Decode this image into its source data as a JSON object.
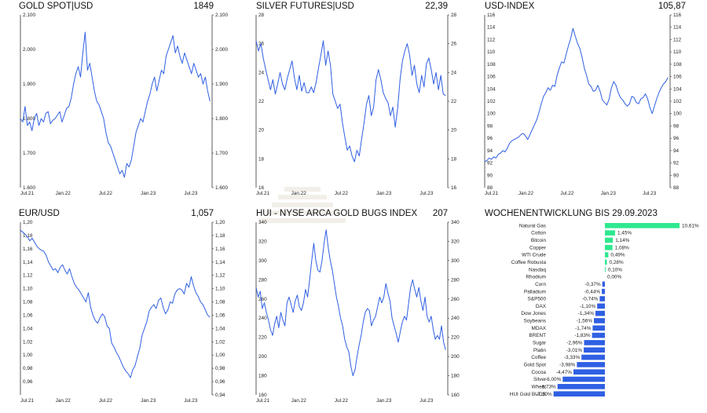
{
  "chart_data": [
    {
      "type": "line",
      "title": "GOLD SPOT|USD",
      "last_value": "1849",
      "ylim": [
        1600,
        2100
      ],
      "y_ticks": [
        "1.600",
        "1.700",
        "1.800",
        "1.900",
        "2.000",
        "2.100"
      ],
      "y_tick_values": [
        1600,
        1700,
        1800,
        1900,
        2000,
        2100
      ],
      "x_ticks": [
        "Jul.21",
        "Jan.22",
        "Jul.22",
        "Jan.23",
        "Jul.23"
      ],
      "x_tick_pos": [
        0,
        6,
        12,
        18,
        24
      ],
      "xmax": 27,
      "color": "#2f5fe3",
      "series": [
        {
          "values": [
            1800,
            1790,
            1835,
            1780,
            1790,
            1765,
            1800,
            1815,
            1780,
            1800,
            1790,
            1815,
            1820,
            1785,
            1795,
            1800,
            1810,
            1820,
            1790,
            1810,
            1830,
            1835,
            1860,
            1900,
            1930,
            1950,
            1920,
            1990,
            2050,
            1940,
            1960,
            1920,
            1880,
            1850,
            1840,
            1820,
            1800,
            1760,
            1730,
            1720,
            1700,
            1680,
            1660,
            1640,
            1650,
            1630,
            1670,
            1660,
            1680,
            1720,
            1760,
            1780,
            1800,
            1790,
            1820,
            1850,
            1870,
            1900,
            1920,
            1880,
            1910,
            1940,
            1930,
            1980,
            2000,
            2020,
            2040,
            1990,
            2010,
            1980,
            1960,
            1990,
            1970,
            1950,
            1930,
            1960,
            1940,
            1920,
            1930,
            1900,
            1920,
            1880,
            1850
          ]
        }
      ]
    },
    {
      "type": "line",
      "title": "SILVER FUTURES|USD",
      "last_value": "22,39",
      "ylim": [
        16,
        28
      ],
      "y_ticks": [
        "16",
        "18",
        "20",
        "22",
        "24",
        "26",
        "28"
      ],
      "y_tick_values": [
        16,
        18,
        20,
        22,
        24,
        26,
        28
      ],
      "x_ticks": [
        "Jul.21",
        "Jan.22",
        "Jul.22",
        "Jan.23",
        "Jul.23"
      ],
      "x_tick_pos": [
        0,
        6,
        12,
        18,
        24
      ],
      "xmax": 27,
      "color": "#2f5fe3",
      "series": [
        {
          "values": [
            26.2,
            25.5,
            26.0,
            25.0,
            24.2,
            23.5,
            22.8,
            23.5,
            22.5,
            23.2,
            24.0,
            23.2,
            22.8,
            23.6,
            24.2,
            24.8,
            23.6,
            22.8,
            23.8,
            22.7,
            23.3,
            22.6,
            22.6,
            23.0,
            22.6,
            23.3,
            24.3,
            25.2,
            26.2,
            24.5,
            25.5,
            24.5,
            22.5,
            22.0,
            21.5,
            21.8,
            20.5,
            19.5,
            18.6,
            18.9,
            18.2,
            17.8,
            18.6,
            18.2,
            19.4,
            20.5,
            21.8,
            22.4,
            21.0,
            21.6,
            23.5,
            24.2,
            23.5,
            22.6,
            22.2,
            21.9,
            21.0,
            21.6,
            20.2,
            21.5,
            23.5,
            24.8,
            25.5,
            26.0,
            25.2,
            23.8,
            24.5,
            23.2,
            22.6,
            23.8,
            23.0,
            24.6,
            25.0,
            24.2,
            23.2,
            24.0,
            22.8,
            23.8,
            22.5,
            22.39
          ]
        }
      ]
    },
    {
      "type": "line",
      "title": "USD-INDEX",
      "last_value": "105,87",
      "ylim": [
        88,
        116
      ],
      "y_ticks": [
        "88",
        "90",
        "92",
        "94",
        "96",
        "98",
        "100",
        "102",
        "104",
        "106",
        "108",
        "110",
        "112",
        "114",
        "116"
      ],
      "y_tick_values": [
        88,
        90,
        92,
        94,
        96,
        98,
        100,
        102,
        104,
        106,
        108,
        110,
        112,
        114,
        116
      ],
      "x_ticks": [
        "Jul.21",
        "Jan.22",
        "Jul.22",
        "Jan.23",
        "Jul.23"
      ],
      "x_tick_pos": [
        0,
        6,
        12,
        18,
        24
      ],
      "xmax": 27,
      "color": "#2f5fe3",
      "series": [
        {
          "values": [
            92.2,
            92.4,
            92.8,
            92.6,
            93.0,
            92.8,
            93.4,
            93.6,
            94.0,
            93.8,
            94.4,
            95.2,
            95.6,
            95.8,
            96.0,
            96.2,
            96.6,
            96.8,
            96.4,
            95.8,
            96.6,
            97.4,
            98.2,
            99.0,
            100.2,
            101.6,
            102.8,
            103.4,
            104.2,
            103.8,
            104.6,
            104.4,
            106.2,
            107.4,
            108.4,
            108.2,
            109.6,
            111.0,
            112.2,
            113.8,
            112.6,
            111.4,
            110.6,
            109.2,
            107.4,
            106.2,
            104.8,
            104.4,
            103.6,
            103.8,
            104.6,
            103.6,
            102.2,
            101.8,
            101.4,
            102.4,
            104.2,
            105.2,
            104.6,
            103.4,
            102.6,
            102.2,
            101.6,
            101.2,
            101.6,
            102.8,
            102.6,
            101.8,
            101.6,
            102.4,
            102.6,
            103.2,
            102.4,
            101.0,
            100.0,
            101.2,
            102.4,
            103.4,
            104.2,
            104.8,
            105.2,
            105.87
          ]
        }
      ]
    },
    {
      "type": "line",
      "title": "EUR/USD",
      "last_value": "1,057",
      "ylim": [
        0.94,
        1.2
      ],
      "y_ticks": [
        "0,94",
        "0,96",
        "0,98",
        "1,00",
        "1,02",
        "1,04",
        "1,06",
        "1,08",
        "1,10",
        "1,12",
        "1,14",
        "1,16",
        "1,18",
        "1,20"
      ],
      "y_tick_values": [
        0.94,
        0.96,
        0.98,
        1.0,
        1.02,
        1.04,
        1.06,
        1.08,
        1.1,
        1.12,
        1.14,
        1.16,
        1.18,
        1.2
      ],
      "left_ticks": [
        "0,96",
        "0,98",
        "1,00",
        "1,02",
        "1,04",
        "1,06",
        "1,08",
        "1,10",
        "1,12",
        "1,14",
        "1,16",
        "1,18",
        "1,20"
      ],
      "left_tick_values": [
        0.96,
        0.98,
        1.0,
        1.02,
        1.04,
        1.06,
        1.08,
        1.1,
        1.12,
        1.14,
        1.16,
        1.18,
        1.2
      ],
      "x_ticks": [
        "Jul.21",
        "Jan.22",
        "Jul.22",
        "Jan.23",
        "Jul.23"
      ],
      "x_tick_pos": [
        0,
        6,
        12,
        18,
        24
      ],
      "xmax": 27,
      "color": "#2f5fe3",
      "series": [
        {
          "values": [
            1.188,
            1.185,
            1.182,
            1.178,
            1.172,
            1.176,
            1.17,
            1.164,
            1.16,
            1.158,
            1.156,
            1.15,
            1.14,
            1.134,
            1.128,
            1.13,
            1.124,
            1.132,
            1.136,
            1.128,
            1.122,
            1.13,
            1.118,
            1.108,
            1.102,
            1.098,
            1.092,
            1.086,
            1.08,
            1.094,
            1.072,
            1.06,
            1.052,
            1.048,
            1.056,
            1.062,
            1.058,
            1.044,
            1.04,
            1.018,
            1.012,
            1.004,
            0.998,
            0.99,
            0.982,
            0.976,
            0.972,
            0.966,
            0.978,
            0.984,
            0.998,
            1.01,
            1.03,
            1.04,
            1.05,
            1.066,
            1.072,
            1.076,
            1.07,
            1.082,
            1.086,
            1.072,
            1.062,
            1.068,
            1.08,
            1.078,
            1.092,
            1.098,
            1.1,
            1.098,
            1.092,
            1.108,
            1.102,
            1.118,
            1.104,
            1.094,
            1.088,
            1.08,
            1.076,
            1.068,
            1.06,
            1.057
          ]
        }
      ]
    },
    {
      "type": "line",
      "title": "HUI - NYSE ARCA GOLD BUGS INDEX",
      "last_value": "207",
      "ylim": [
        160,
        340
      ],
      "y_ticks": [
        "160",
        "180",
        "200",
        "220",
        "240",
        "260",
        "280",
        "300",
        "320",
        "340"
      ],
      "y_tick_values": [
        160,
        180,
        200,
        220,
        240,
        260,
        280,
        300,
        320,
        340
      ],
      "x_ticks": [
        "Jul.21",
        "Jan.22",
        "Jul.22",
        "Jan.23",
        "Jul.23"
      ],
      "x_tick_pos": [
        0,
        6,
        12,
        18,
        24
      ],
      "xmax": 27,
      "color": "#2f5fe3",
      "series": [
        {
          "values": [
            272,
            262,
            268,
            250,
            256,
            246,
            238,
            228,
            222,
            234,
            242,
            230,
            246,
            238,
            232,
            256,
            262,
            254,
            246,
            258,
            264,
            252,
            248,
            256,
            270,
            262,
            280,
            300,
            318,
            300,
            290,
            288,
            300,
            318,
            332,
            314,
            300,
            290,
            276,
            262,
            252,
            240,
            232,
            218,
            210,
            205,
            190,
            180,
            186,
            200,
            212,
            222,
            236,
            246,
            250,
            248,
            232,
            238,
            242,
            252,
            262,
            256,
            262,
            276,
            266,
            258,
            240,
            232,
            224,
            215,
            226,
            236,
            242,
            238,
            255,
            272,
            280,
            270,
            262,
            272,
            258,
            248,
            262,
            242,
            236,
            242,
            228,
            218,
            222,
            218,
            232,
            215,
            207
          ]
        }
      ]
    },
    {
      "type": "bar",
      "orientation": "horizontal",
      "title": "WOCHENENTWICKLUNG BIS  29.09.2023",
      "xlim": [
        -7.3,
        10.61
      ],
      "categories": [
        "Natural Gas",
        "Cotton",
        "Bitcoin",
        "Copper",
        "WTI Crude",
        "Coffee Robusta",
        "Nasdaq",
        "Rhodium",
        "Corn",
        "Palladium",
        "S&P500",
        "DAX",
        "Dow Jones",
        "Soybeans",
        "MDAX",
        "BRENT",
        "Sugar",
        "Platin",
        "Coffee",
        "Gold Spot",
        "Cocoa",
        "Silver",
        "Wheat",
        "HUI Gold BUGS"
      ],
      "values": [
        10.61,
        1.45,
        1.14,
        1.08,
        0.49,
        0.28,
        0.1,
        0.0,
        -0.37,
        -0.44,
        -0.74,
        -1.1,
        -1.34,
        -1.56,
        -1.74,
        -1.83,
        -2.96,
        -3.01,
        -3.33,
        -3.98,
        -4.47,
        -6.0,
        -6.73,
        -7.3
      ],
      "labels": [
        "10,61%",
        "1,45%",
        "1,14%",
        "1,08%",
        "0,49%",
        "0,28%",
        "0,10%",
        "0,00%",
        "-0,37%",
        "-0,44%",
        "-0,74%",
        "-1,10%",
        "-1,34%",
        "-1,56%",
        "-1,74%",
        "-1,83%",
        "-2,96%",
        "-3,01%",
        "-3,33%",
        "-3,98%",
        "-4,47%",
        "-6,00%",
        "-6,73%",
        "-7,30%"
      ],
      "positive_color": "#2ee88f",
      "negative_color": "#2f5fe3"
    }
  ]
}
